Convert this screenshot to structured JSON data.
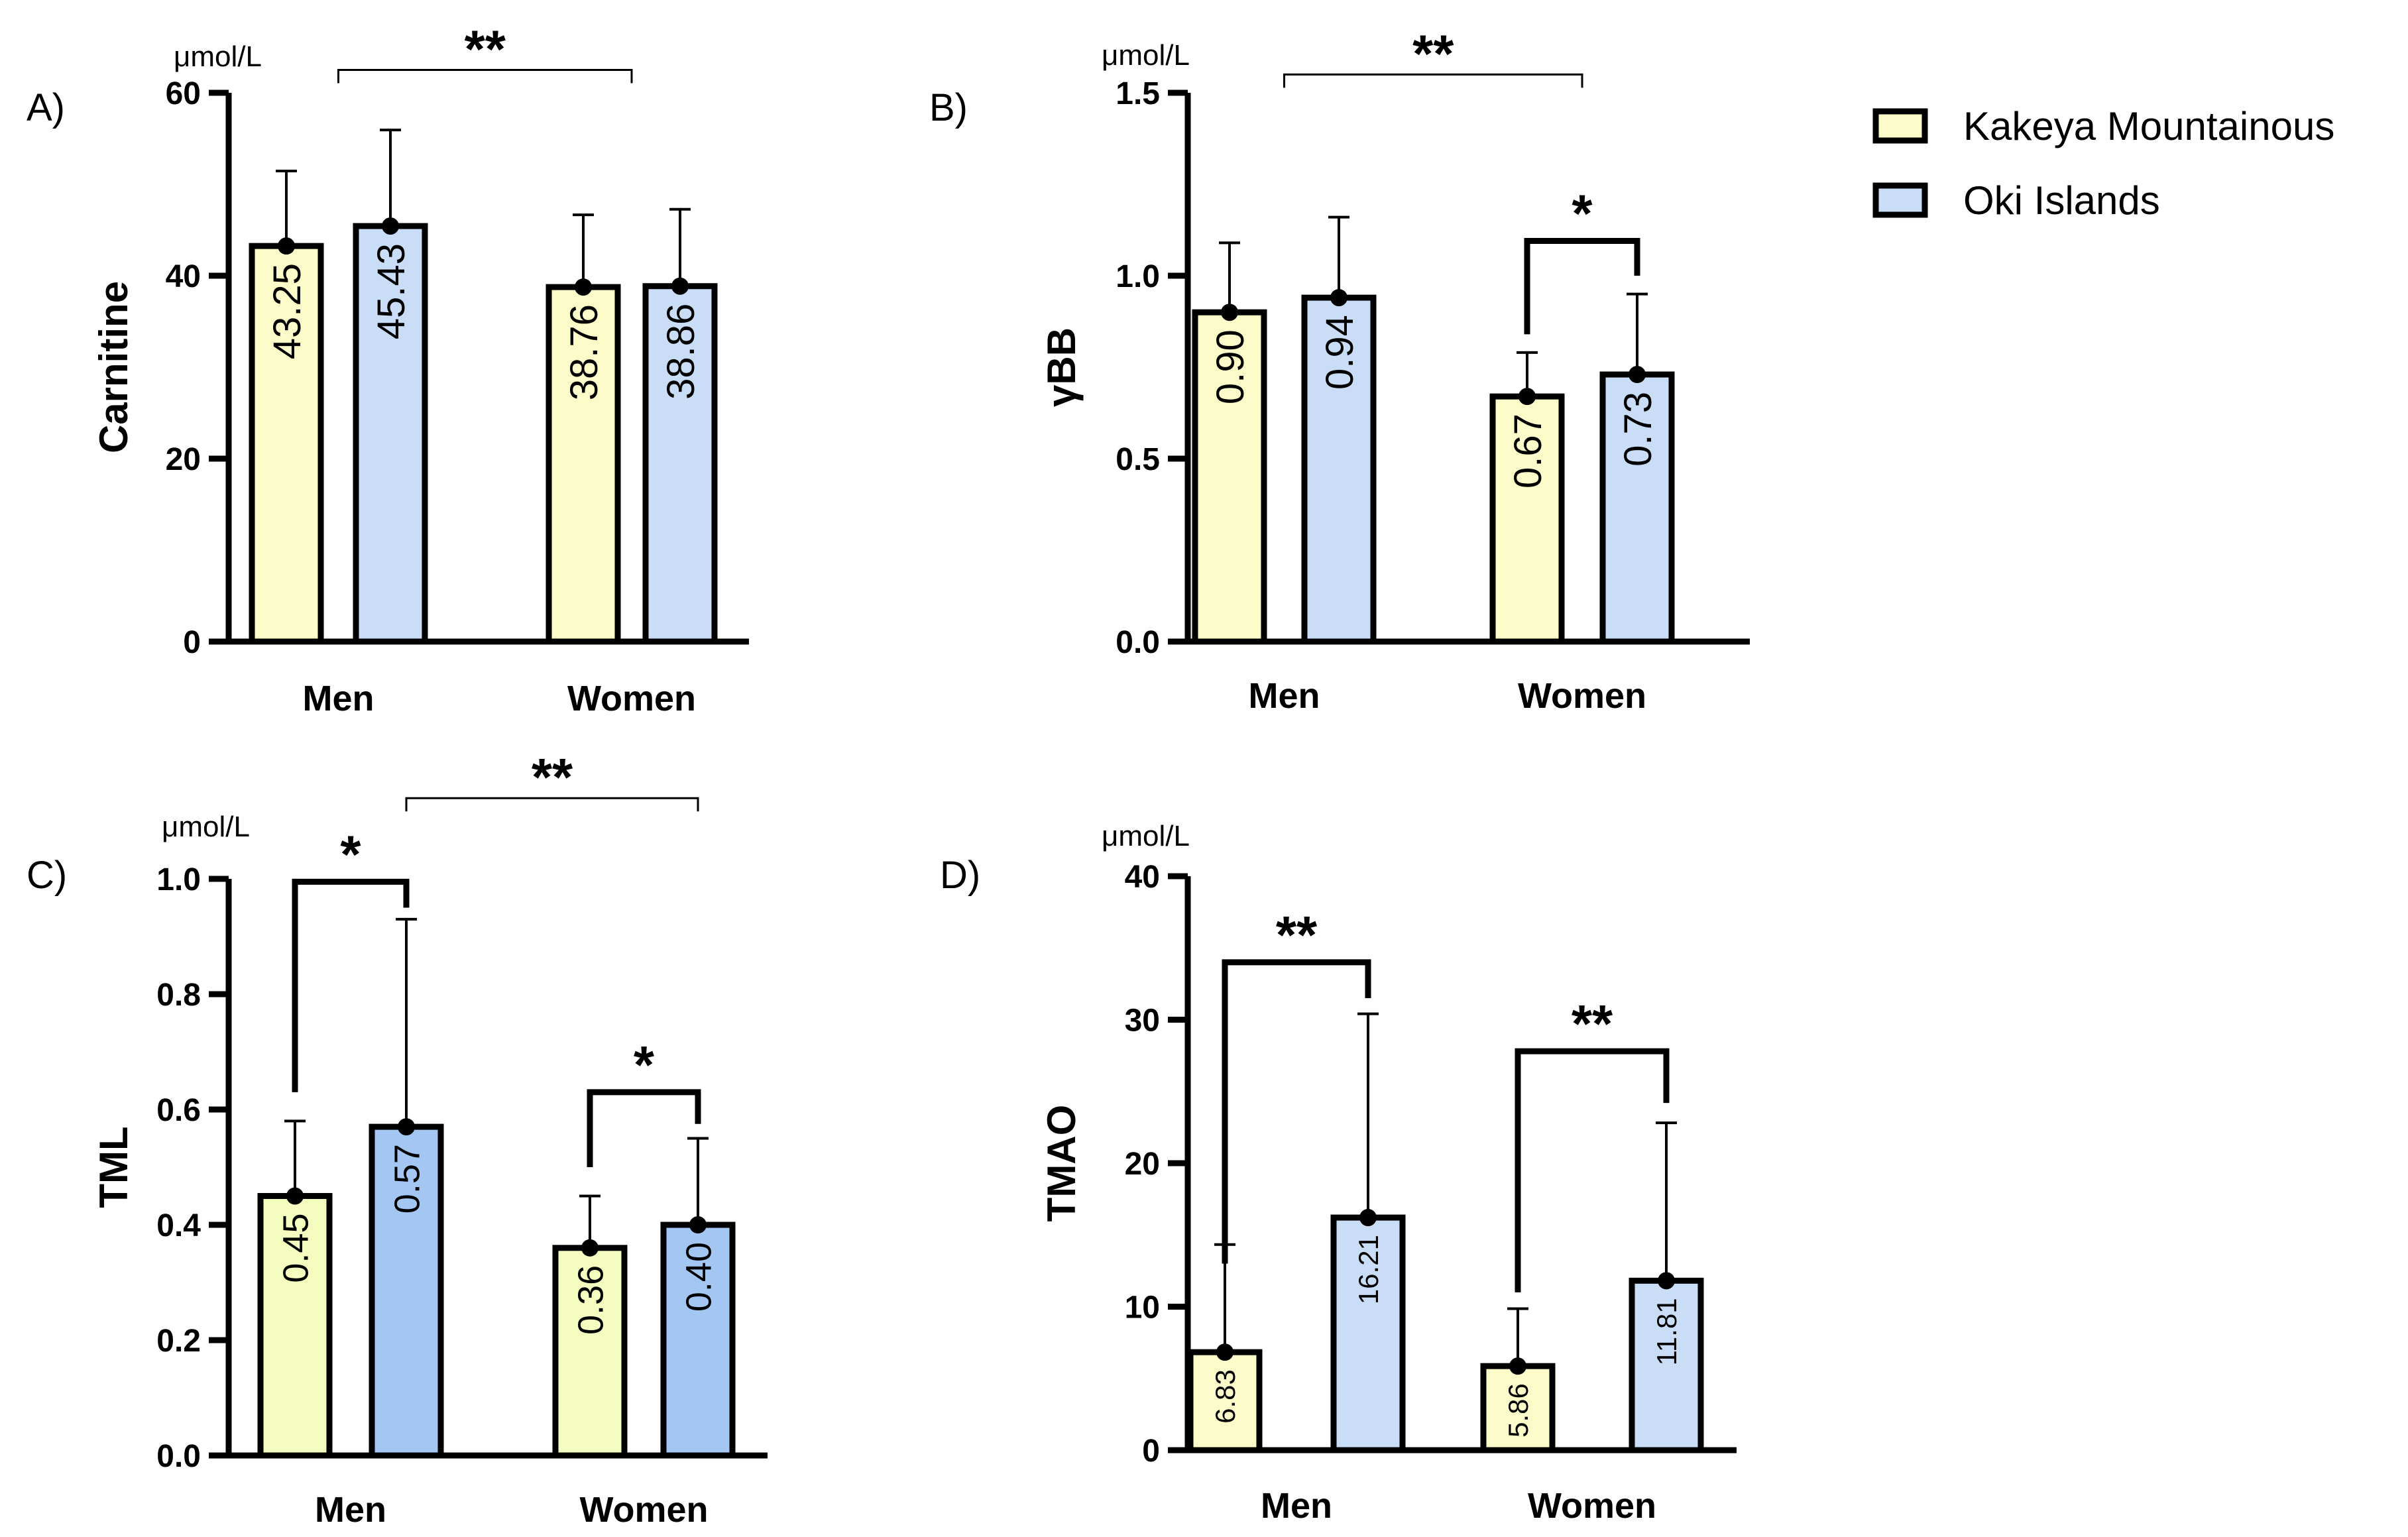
{
  "figure": {
    "title": ""
  },
  "legend": {
    "position": "top-right",
    "items": [
      {
        "label": "Kakeya Mountainous",
        "color": "#fbfcc9"
      },
      {
        "label": "Oki Islands",
        "color": "#c9ddf7"
      }
    ]
  },
  "chart_data": [
    {
      "panel": "A)",
      "type": "bar",
      "unit": "μmol/L",
      "ylabel": "Carnitine",
      "categories": [
        "Men",
        "Women"
      ],
      "ylim": [
        0,
        60
      ],
      "yticks": [
        0,
        20,
        40,
        60
      ],
      "tick_labels": [
        "0",
        "20",
        "40",
        "60"
      ],
      "series": [
        {
          "name": "Kakeya Mountainous",
          "color": "#fbfcc9",
          "values": [
            43.25,
            38.76
          ],
          "errors": [
            8.2,
            7.9
          ],
          "labels": [
            "43.25",
            "38.76"
          ]
        },
        {
          "name": "Oki Islands",
          "color": "#c9ddf7",
          "values": [
            45.43,
            38.86
          ],
          "errors": [
            10.5,
            8.4
          ],
          "labels": [
            "45.43",
            "38.86"
          ]
        }
      ],
      "annotations": [
        {
          "text": "**",
          "type": "between-groups",
          "from": [
            0,
            0.5
          ],
          "to": [
            1,
            0.5
          ],
          "y": 62.5,
          "bold": false
        }
      ]
    },
    {
      "panel": "B)",
      "type": "bar",
      "unit": "μmol/L",
      "ylabel": "γBB",
      "categories": [
        "Men",
        "Women"
      ],
      "ylim": [
        0,
        1.5
      ],
      "yticks": [
        0,
        0.5,
        1.0,
        1.5
      ],
      "tick_labels": [
        "0.0",
        "0.5",
        "1.0",
        "1.5"
      ],
      "series": [
        {
          "name": "Kakeya Mountainous",
          "color": "#fbfcc9",
          "values": [
            0.9,
            0.67
          ],
          "errors": [
            0.19,
            0.12
          ],
          "labels": [
            "0.90",
            "0.67"
          ]
        },
        {
          "name": "Oki Islands",
          "color": "#c9ddf7",
          "values": [
            0.94,
            0.73
          ],
          "errors": [
            0.22,
            0.22
          ],
          "labels": [
            "0.94",
            "0.73"
          ]
        }
      ],
      "annotations": [
        {
          "text": "**",
          "type": "between-groups",
          "from": [
            0,
            0.5
          ],
          "to": [
            1,
            0.5
          ],
          "y": 1.55,
          "bold": false
        },
        {
          "text": "*",
          "type": "within-group",
          "group": 1,
          "y": 1.095,
          "base": [
            0.84,
            1.0
          ],
          "bold": true
        }
      ]
    },
    {
      "panel": "C)",
      "type": "bar",
      "unit": "μmol/L",
      "ylabel": "TML",
      "categories": [
        "Men",
        "Women"
      ],
      "ylim": [
        0,
        1.0
      ],
      "yticks": [
        0,
        0.2,
        0.4,
        0.6,
        0.8,
        1.0
      ],
      "tick_labels": [
        "0.0",
        "0.2",
        "0.4",
        "0.6",
        "0.8",
        "1.0"
      ],
      "series": [
        {
          "name": "Kakeya Mountainous",
          "color": "#f5fcbf",
          "values": [
            0.45,
            0.36
          ],
          "errors": [
            0.13,
            0.09
          ],
          "labels": [
            "0.45",
            "0.36"
          ]
        },
        {
          "name": "Oki Islands",
          "color": "#a3c6f2",
          "values": [
            0.57,
            0.4
          ],
          "errors": [
            0.36,
            0.15
          ],
          "labels": [
            "0.57",
            "0.40"
          ]
        }
      ],
      "annotations": [
        {
          "text": "**",
          "type": "between-groups",
          "from": [
            0,
            1.0
          ],
          "to": [
            1,
            1.0
          ],
          "y": 1.14,
          "bold": false
        },
        {
          "text": "*",
          "type": "within-group",
          "group": 0,
          "y": 0.995,
          "base": [
            0.63,
            0.95
          ],
          "bold": true
        },
        {
          "text": "*",
          "type": "within-group",
          "group": 1,
          "y": 0.63,
          "base": [
            0.5,
            0.575
          ],
          "bold": true
        }
      ]
    },
    {
      "panel": "D)",
      "type": "bar",
      "unit": "μmol/L",
      "ylabel": "TMAO",
      "categories": [
        "Men",
        "Women"
      ],
      "ylim": [
        0,
        40
      ],
      "yticks": [
        0,
        10,
        20,
        30,
        40
      ],
      "tick_labels": [
        "0",
        "10",
        "20",
        "30",
        "40"
      ],
      "series": [
        {
          "name": "Kakeya Mountainous",
          "color": "#fbfcc9",
          "values": [
            6.83,
            5.86
          ],
          "errors": [
            7.5,
            4.0
          ],
          "labels": [
            "6.83",
            "5.86"
          ]
        },
        {
          "name": "Oki Islands",
          "color": "#c9ddf7",
          "values": [
            16.21,
            11.81
          ],
          "errors": [
            14.2,
            11.0
          ],
          "labels": [
            "16.21",
            "11.81"
          ]
        }
      ],
      "annotations": [
        {
          "text": "**",
          "type": "within-group",
          "group": 0,
          "y": 34.0,
          "base": [
            13.0,
            31.5
          ],
          "bold": false
        },
        {
          "text": "**",
          "type": "within-group",
          "group": 1,
          "y": 27.8,
          "base": [
            11.0,
            24.2
          ],
          "bold": false
        }
      ]
    }
  ]
}
